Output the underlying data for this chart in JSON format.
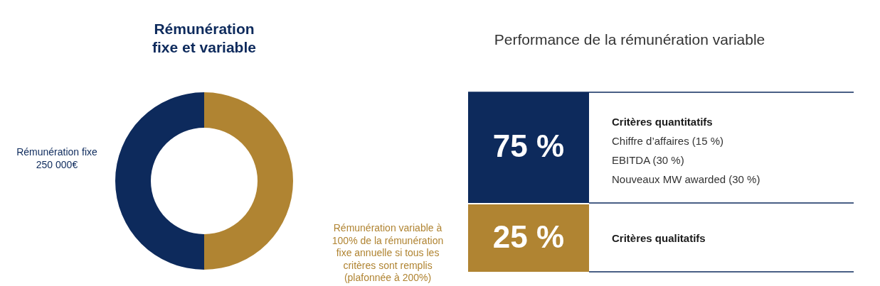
{
  "chart_data": [
    {
      "type": "donut",
      "title": "Rémunération fixe et variable",
      "categories": [
        "Rémunération fixe 250 000€",
        "Rémunération variable à 100% de la rémunération fixe annuelle si tous les critères sont remplis (plafonnée à 200%)"
      ],
      "values": [
        50,
        50
      ],
      "colors": [
        "#0d2a5c",
        "#b08432"
      ]
    },
    {
      "type": "other",
      "title": "Performance de la rémunération variable",
      "categories": [
        "Critères quantitatifs",
        "Critères qualitatifs"
      ],
      "values": [
        75,
        25
      ],
      "value_labels": [
        "75 %",
        "25 %"
      ],
      "colors": [
        "#0d2a5c",
        "#b08432"
      ],
      "annotations": [
        "Chiffre d’affaires (15 %)",
        "EBITDA (30 %)",
        "Nouveaux MW awarded (30 %)"
      ]
    }
  ]
}
